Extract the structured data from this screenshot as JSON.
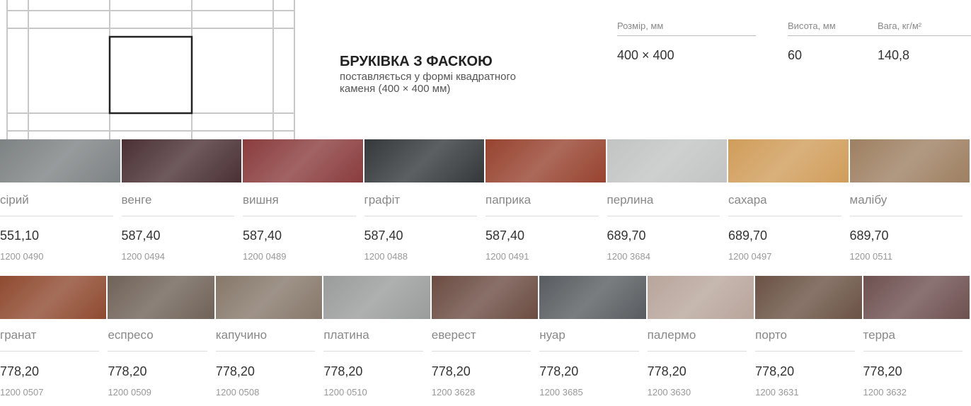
{
  "header": {
    "title": "БРУКІВКА З ФАСКОЮ",
    "subtitle": [
      "поставляється у формі квадратного",
      "каменя (400 × 400 мм)"
    ]
  },
  "specs": [
    {
      "label": "Розмір, мм",
      "value": "400 × 400"
    },
    {
      "label": "Висота, мм",
      "value": "60"
    },
    {
      "label": "Вага, кг/м²",
      "value": "140,8"
    }
  ],
  "rows": [
    [
      {
        "name": "сірий",
        "price": "551,10",
        "code": "1200 0490",
        "color": "#7d8283"
      },
      {
        "name": "венге",
        "price": "587,40",
        "code": "1200 0494",
        "color": "#4a3034"
      },
      {
        "name": "вишня",
        "price": "587,40",
        "code": "1200 0489",
        "color": "#8a3c3d"
      },
      {
        "name": "графіт",
        "price": "587,40",
        "code": "1200 0488",
        "color": "#34383b"
      },
      {
        "name": "паприка",
        "price": "587,40",
        "code": "1200 0491",
        "color": "#97432f"
      },
      {
        "name": "перлина",
        "price": "689,70",
        "code": "1200 3684",
        "color": "#c2c4c4"
      },
      {
        "name": "сахара",
        "price": "689,70",
        "code": "1200 0497",
        "color": "#d09d5a"
      },
      {
        "name": "малібу",
        "price": "689,70",
        "code": "1200 0511",
        "color": "#9e8062"
      }
    ],
    [
      {
        "name": "гранат",
        "price": "778,20",
        "code": "1200 0507",
        "color": "#8f4a30"
      },
      {
        "name": "еспресо",
        "price": "778,20",
        "code": "1200 0509",
        "color": "#6f6258"
      },
      {
        "name": "капучино",
        "price": "778,20",
        "code": "1200 0508",
        "color": "#86786a"
      },
      {
        "name": "платина",
        "price": "778,20",
        "code": "1200 0510",
        "color": "#9a9c9b"
      },
      {
        "name": "еверест",
        "price": "778,20",
        "code": "1200 3628",
        "color": "#6b4c42"
      },
      {
        "name": "нуар",
        "price": "778,20",
        "code": "1200 3685",
        "color": "#585c60"
      },
      {
        "name": "палермо",
        "price": "778,20",
        "code": "1200 3630",
        "color": "#b8a59b"
      },
      {
        "name": "порто",
        "price": "778,20",
        "code": "1200 3631",
        "color": "#6a5244"
      },
      {
        "name": "терра",
        "price": "778,20",
        "code": "1200 3632",
        "color": "#6e5050"
      }
    ]
  ]
}
